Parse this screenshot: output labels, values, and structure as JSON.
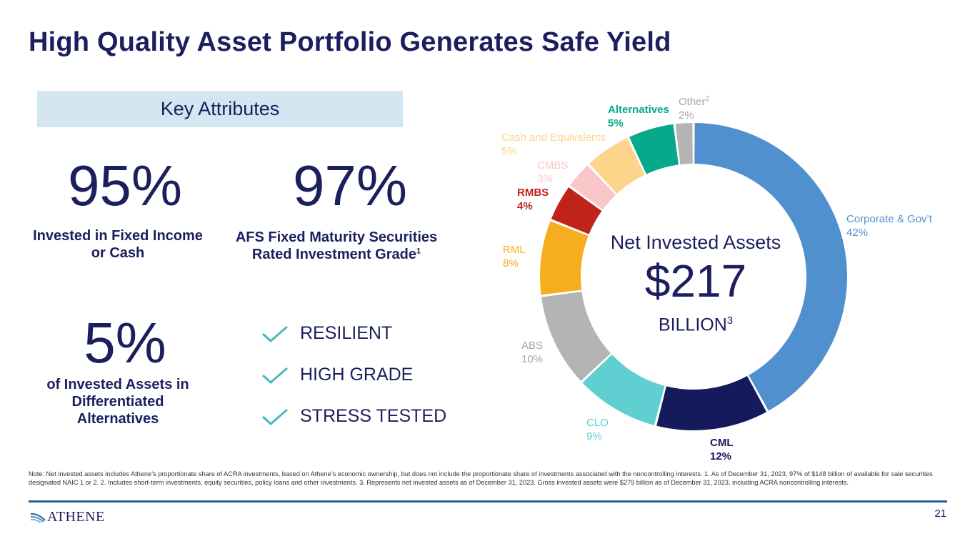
{
  "title": "High Quality Asset Portfolio Generates Safe Yield",
  "key_attributes": {
    "heading": "Key Attributes",
    "stats": [
      {
        "value": "95%",
        "label_line1": "Invested in Fixed Income",
        "label_line2": "or Cash"
      },
      {
        "value": "97%",
        "label_line1": "AFS Fixed Maturity Securities",
        "label_line2": "Rated Investment Grade",
        "label_sup": "1"
      },
      {
        "value": "5%",
        "label_line1": "of Invested Assets in",
        "label_line2": "Differentiated",
        "label_line3": "Alternatives"
      }
    ],
    "checks": [
      "RESILIENT",
      "HIGH GRADE",
      "STRESS TESTED"
    ]
  },
  "center": {
    "label": "Net Invested Assets",
    "value": "$217",
    "unit": "BILLION",
    "unit_sup": "3"
  },
  "chart_data": {
    "type": "pie",
    "subtype": "donut",
    "title": "Net Invested Assets",
    "total": "$217 billion",
    "slices": [
      {
        "label": "Corporate & Gov’t",
        "value": 42,
        "pct": "42%",
        "color": "#5190cf"
      },
      {
        "label": "CML",
        "value": 12,
        "pct": "12%",
        "color": "#151a5c"
      },
      {
        "label": "CLO",
        "value": 9,
        "pct": "9%",
        "color": "#5fcfd1"
      },
      {
        "label": "ABS",
        "value": 10,
        "pct": "10%",
        "color": "#b4b4b4"
      },
      {
        "label": "RML",
        "value": 8,
        "pct": "8%",
        "color": "#f6ad1e"
      },
      {
        "label": "RMBS",
        "value": 4,
        "pct": "4%",
        "color": "#c0231a"
      },
      {
        "label": "CMBS",
        "value": 3,
        "pct": "3%",
        "color": "#f9c6c9"
      },
      {
        "label": "Cash and Equivalents",
        "value": 5,
        "pct": "5%",
        "color": "#fcd58a"
      },
      {
        "label": "Alternatives",
        "value": 5,
        "pct": "5%",
        "color": "#06a98a"
      },
      {
        "label": "Other",
        "label_sup": "2",
        "value": 2,
        "pct": "2%",
        "color": "#b4b4b4"
      }
    ],
    "label_colors": {
      "Corporate & Gov’t": "#5190cf",
      "CML": "#151a5c",
      "CLO": "#5fcfd1",
      "ABS": "#a6a6a6",
      "RML": "#f6ad1e",
      "RMBS": "#c0231a",
      "CMBS": "#f9c6c9",
      "Cash and Equivalents": "#fcd58a",
      "Alternatives": "#06a98a",
      "Other": "#a6a6a6"
    }
  },
  "note": "Note: Net invested assets includes Athene’s proportionate share of ACRA investments, based on Athene’s economic ownership, but does not include the proportionate share of investments associated with the noncontrolling interests. 1. As of December 31, 2023, 97% of $148 billion of available for sale securities designated NAIC 1 or 2. 2. Includes short-term investments, equity securities, policy loans and other investments. 3. Represents net invested assets as of December 31, 2023. Gross invested assets were $279 billion as of December 31, 2023, including ACRA noncontrolling interests.",
  "footer": {
    "logo_text": "ATHENE",
    "page_number": "21"
  }
}
